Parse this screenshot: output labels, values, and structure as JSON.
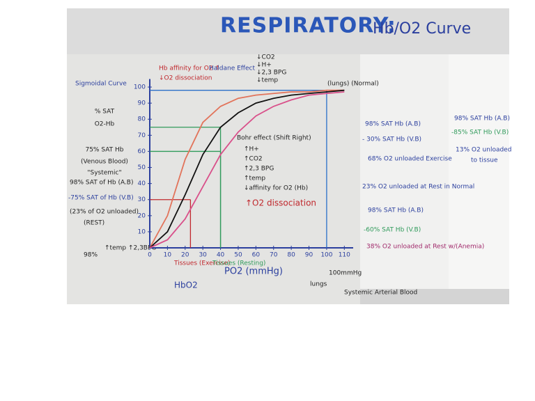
{
  "title_main": "RESPIRATORY:",
  "title_sub": "Hb/O2 Curve",
  "notes": {
    "sigmoid": "Sigmoidal Curve",
    "venous": [
      "75% SAT Hb",
      "(Venous Blood)",
      "\"Systemic\""
    ],
    "rest": [
      "98% SAT of Hb (A.B)",
      "-75% SAT of Hb (V.B)",
      "(23% of O2 unloaded)",
      "(REST)"
    ],
    "left_shift": [
      "Hb affinity for O2 ↑",
      "↓O2 dissociation"
    ],
    "haldane": "Haldane Effect",
    "decrease": [
      "↓CO2",
      "↓H+",
      "↓2,3 BPG",
      "↓temp"
    ],
    "bohr": [
      "Bohr effect (Shift Right)",
      "↑H+",
      "↑CO2",
      "↑2,3 BPG",
      "↑temp",
      "↓affinity for O2 (Hb)",
      "↑O2 dissociation"
    ],
    "lungs_top": "(lungs) (Normal)",
    "tissues_exercise": "Tissues (Exercise)",
    "tissues_resting": "Tissues (Resting)",
    "lungs": [
      "100mmHg",
      "lungs",
      "Systemic Arterial Blood"
    ],
    "bottom": [
      "98%",
      "↑temp ↑2,3BPG",
      "HbO2"
    ],
    "exercise": [
      "98% SAT Hb (A.B)",
      "- 30% SAT Hb (V.B)",
      "68% O2 unloaded Exercise"
    ],
    "normal": "23% O2 unloaded at Rest in Normal",
    "anemia": [
      "98% SAT Hb (A.B)",
      "-60% SAT Hb (V.B)",
      "38% O2 unloaded at Rest w/(Anemia)"
    ],
    "far": [
      "98% SAT Hb (A.B)",
      "-85% SAT Hb (V.B)",
      "13% O2 unloaded",
      "to tissue"
    ]
  },
  "chart_data": {
    "type": "line",
    "x_label": "PO2 (mmHg)",
    "y_label": [
      "% SAT",
      "O2-Hb"
    ],
    "x": [
      0,
      10,
      20,
      30,
      40,
      50,
      60,
      70,
      80,
      90,
      100,
      110
    ],
    "xlim": [
      0,
      115
    ],
    "ylim": [
      0,
      105
    ],
    "xticks": [
      0,
      10,
      20,
      30,
      40,
      50,
      60,
      70,
      80,
      90,
      100,
      110
    ],
    "yticks": [
      10,
      20,
      30,
      40,
      50,
      60,
      70,
      80,
      90,
      100
    ],
    "series": [
      {
        "color": "#e2735a",
        "values": [
          0,
          20,
          55,
          78,
          88,
          93,
          95,
          96,
          97,
          97,
          98,
          98
        ]
      },
      {
        "color": "#111111",
        "values": [
          0,
          10,
          33,
          58,
          75,
          84,
          90,
          93,
          95,
          96,
          97,
          98
        ]
      },
      {
        "color": "#d9508a",
        "values": [
          0,
          5,
          18,
          38,
          58,
          72,
          82,
          88,
          92,
          95,
          96,
          97
        ]
      }
    ],
    "guides": [
      {
        "x": 40,
        "y": 75,
        "color": "#2f9a5a"
      },
      {
        "x": 40,
        "y": 60,
        "color": "#2f9a5a"
      },
      {
        "x": 23,
        "y": 30,
        "color": "#c0282d"
      },
      {
        "x": 100,
        "y": 98,
        "color": "#2a6fc9"
      }
    ]
  }
}
